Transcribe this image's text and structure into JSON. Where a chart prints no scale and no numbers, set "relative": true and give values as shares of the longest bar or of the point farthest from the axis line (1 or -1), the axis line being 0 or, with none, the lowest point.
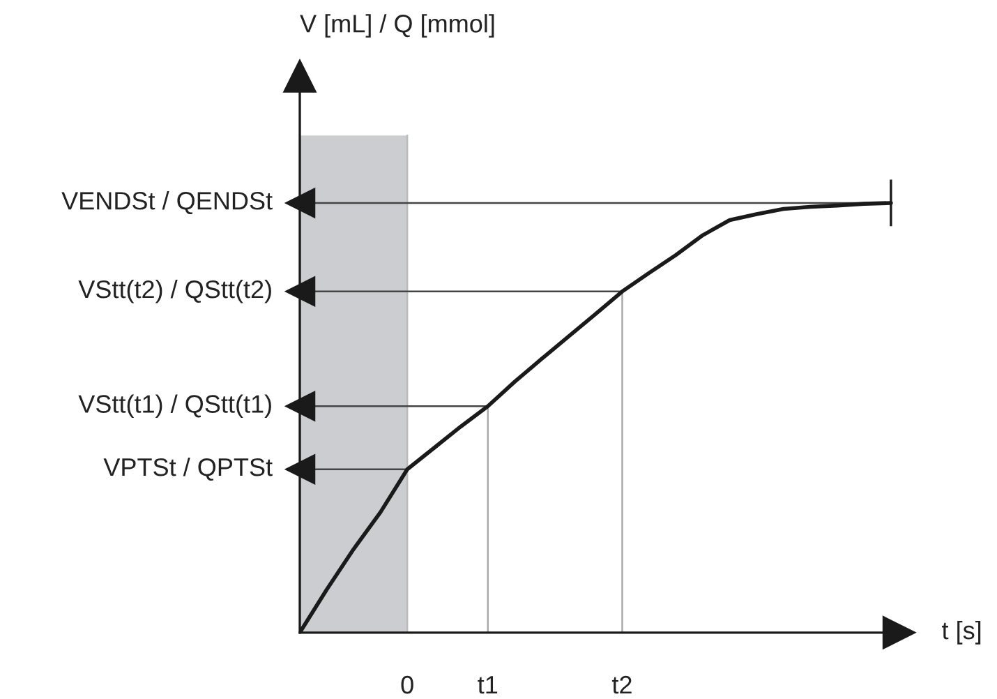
{
  "chart_data": {
    "type": "line",
    "relative": true,
    "xlabel": "t [s]",
    "annotations": [
      "V [mL] / Q [mmol]"
    ],
    "categories": [
      null,
      null,
      null,
      null,
      "0",
      null,
      null,
      "t1",
      null,
      null,
      null,
      null,
      "t2",
      null,
      null,
      null,
      null,
      null,
      null,
      null,
      null,
      null,
      null
    ],
    "series": [
      {
        "color": "#1a1a1a",
        "values": [
          0,
          0.1,
          0.194,
          0.28,
          0.38,
          0.43,
          0.48,
          0.527,
          0.584,
          0.637,
          0.689,
          0.741,
          0.794,
          0.837,
          0.879,
          0.925,
          0.96,
          0.974,
          0.986,
          0.991,
          0.994,
          0.998,
          1.0
        ]
      }
    ],
    "ref_lines": [
      {
        "axis": "y",
        "value": 1.0,
        "label": "VENDSt / QENDSt"
      },
      {
        "axis": "y",
        "value": 0.794,
        "label": "VStt(t2) / QStt(t2)"
      },
      {
        "axis": "y",
        "value": 0.527,
        "label": "VStt(t1) / QStt(t1)"
      },
      {
        "axis": "y",
        "value": 0.38,
        "label": "VPTSt / QPTSt"
      },
      {
        "axis": "x",
        "value": "0",
        "color": "#bbbbbb"
      },
      {
        "axis": "x",
        "value": "t1",
        "color": "#aaaaaa"
      },
      {
        "axis": "x",
        "value": "t2",
        "color": "#aaaaaa"
      }
    ],
    "line_style": "solid"
  }
}
